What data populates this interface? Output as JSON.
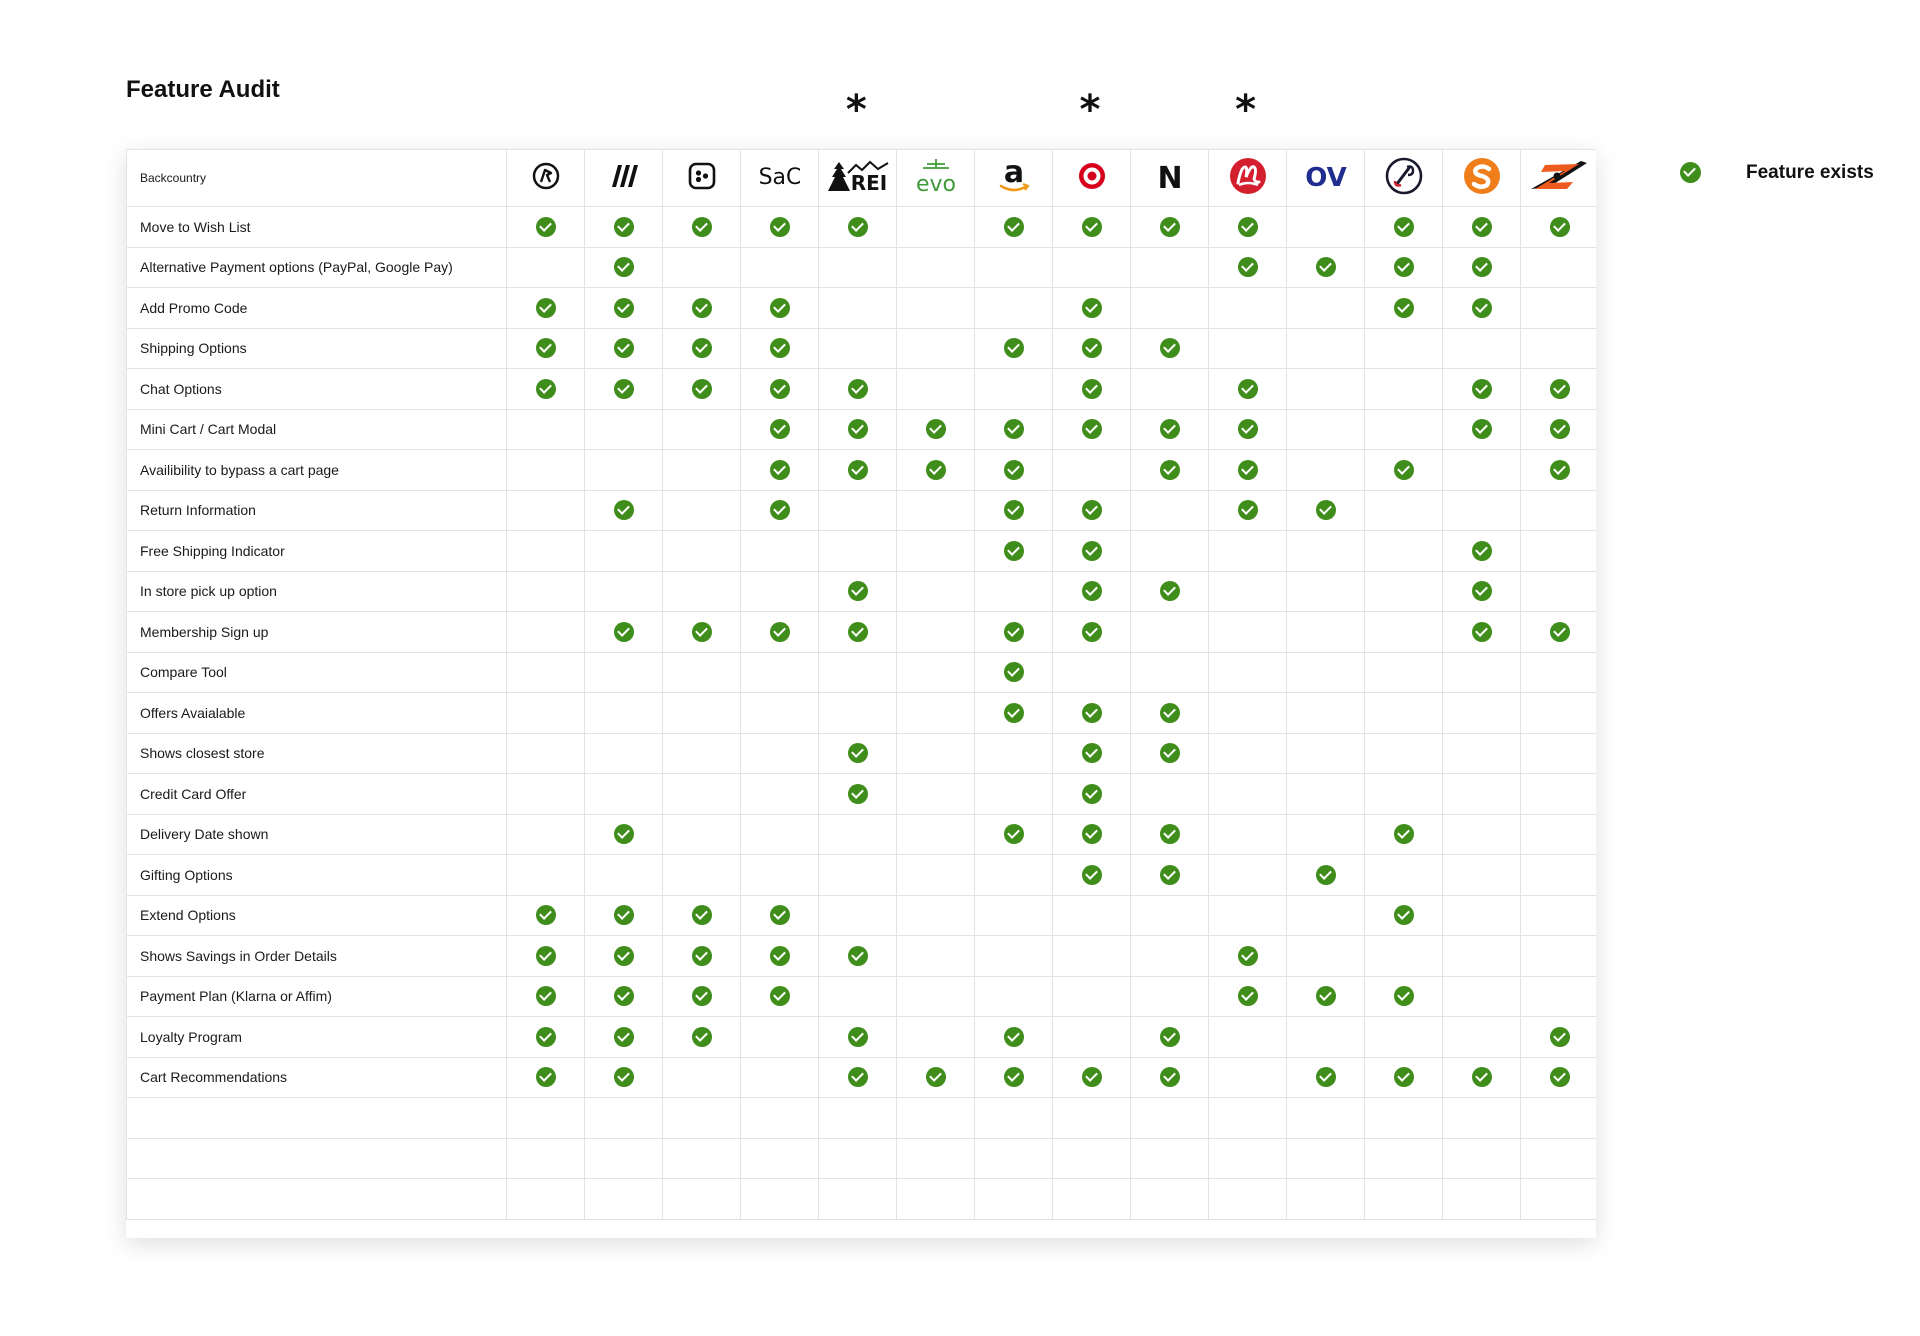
{
  "title": "Feature Audit",
  "header_label": "Backcountry",
  "legend": {
    "label": "Feature exists",
    "check_color": "#3f8d1b"
  },
  "star_marker": "*",
  "starred_columns": [
    "rei",
    "target",
    "lululemon"
  ],
  "columns": [
    {
      "id": "col-1",
      "icon": "athlete-circle-logo"
    },
    {
      "id": "col-2",
      "icon": "slanted-stripes-logo"
    },
    {
      "id": "col-3",
      "icon": "rounded-square-dots-logo"
    },
    {
      "id": "sac",
      "icon": "sac-logo",
      "text": "SaC"
    },
    {
      "id": "rei",
      "icon": "rei-logo",
      "text": "REI"
    },
    {
      "id": "evo",
      "icon": "evo-logo",
      "text": "evo"
    },
    {
      "id": "amazon",
      "icon": "amazon-logo",
      "text": "a"
    },
    {
      "id": "target",
      "icon": "target-logo"
    },
    {
      "id": "n",
      "icon": "n-logo",
      "text": "N"
    },
    {
      "id": "lululemon",
      "icon": "lululemon-logo"
    },
    {
      "id": "ov",
      "icon": "ov-logo",
      "text": "OV"
    },
    {
      "id": "col-12",
      "icon": "carabiner-circle-logo"
    },
    {
      "id": "col-13",
      "icon": "orange-s-circle-logo"
    },
    {
      "id": "col-14",
      "icon": "orange-z-logo"
    }
  ],
  "rows": [
    {
      "label": "Move to Wish List",
      "checks": [
        1,
        1,
        1,
        1,
        1,
        0,
        1,
        1,
        1,
        1,
        0,
        1,
        1,
        1
      ]
    },
    {
      "label": "Alternative Payment options (PayPal, Google Pay)",
      "checks": [
        0,
        1,
        0,
        0,
        0,
        0,
        0,
        0,
        0,
        1,
        1,
        1,
        1,
        0
      ]
    },
    {
      "label": "Add Promo Code",
      "checks": [
        1,
        1,
        1,
        1,
        0,
        0,
        0,
        1,
        0,
        0,
        0,
        1,
        1,
        0
      ]
    },
    {
      "label": "Shipping Options",
      "checks": [
        1,
        1,
        1,
        1,
        0,
        0,
        1,
        1,
        1,
        0,
        0,
        0,
        0,
        0
      ]
    },
    {
      "label": "Chat Options",
      "checks": [
        1,
        1,
        1,
        1,
        1,
        0,
        0,
        1,
        0,
        1,
        0,
        0,
        1,
        1
      ]
    },
    {
      "label": "Mini Cart / Cart Modal",
      "checks": [
        0,
        0,
        0,
        1,
        1,
        1,
        1,
        1,
        1,
        1,
        0,
        0,
        1,
        1
      ]
    },
    {
      "label": "Availibility to bypass a cart page",
      "checks": [
        0,
        0,
        0,
        1,
        1,
        1,
        1,
        0,
        1,
        1,
        0,
        1,
        0,
        1
      ]
    },
    {
      "label": "Return Information",
      "checks": [
        0,
        1,
        0,
        1,
        0,
        0,
        1,
        1,
        0,
        1,
        1,
        0,
        0,
        0
      ]
    },
    {
      "label": "Free Shipping Indicator",
      "checks": [
        0,
        0,
        0,
        0,
        0,
        0,
        1,
        1,
        0,
        0,
        0,
        0,
        1,
        0
      ]
    },
    {
      "label": "In store pick up option",
      "checks": [
        0,
        0,
        0,
        0,
        1,
        0,
        0,
        1,
        1,
        0,
        0,
        0,
        1,
        0
      ]
    },
    {
      "label": "Membership Sign up",
      "checks": [
        0,
        1,
        1,
        1,
        1,
        0,
        1,
        1,
        0,
        0,
        0,
        0,
        1,
        1
      ]
    },
    {
      "label": "Compare Tool",
      "checks": [
        0,
        0,
        0,
        0,
        0,
        0,
        1,
        0,
        0,
        0,
        0,
        0,
        0,
        0
      ]
    },
    {
      "label": "Offers Avaialable",
      "checks": [
        0,
        0,
        0,
        0,
        0,
        0,
        1,
        1,
        1,
        0,
        0,
        0,
        0,
        0
      ]
    },
    {
      "label": "Shows closest store",
      "checks": [
        0,
        0,
        0,
        0,
        1,
        0,
        0,
        1,
        1,
        0,
        0,
        0,
        0,
        0
      ]
    },
    {
      "label": "Credit Card Offer",
      "checks": [
        0,
        0,
        0,
        0,
        1,
        0,
        0,
        1,
        0,
        0,
        0,
        0,
        0,
        0
      ]
    },
    {
      "label": "Delivery Date shown",
      "checks": [
        0,
        1,
        0,
        0,
        0,
        0,
        1,
        1,
        1,
        0,
        0,
        1,
        0,
        0
      ]
    },
    {
      "label": "Gifting Options",
      "checks": [
        0,
        0,
        0,
        0,
        0,
        0,
        0,
        1,
        1,
        0,
        1,
        0,
        0,
        0
      ]
    },
    {
      "label": "Extend Options",
      "checks": [
        1,
        1,
        1,
        1,
        0,
        0,
        0,
        0,
        0,
        0,
        0,
        1,
        0,
        0
      ]
    },
    {
      "label": "Shows Savings in Order Details",
      "checks": [
        1,
        1,
        1,
        1,
        1,
        0,
        0,
        0,
        0,
        1,
        0,
        0,
        0,
        0
      ]
    },
    {
      "label": "Payment Plan (Klarna or Affim)",
      "checks": [
        1,
        1,
        1,
        1,
        0,
        0,
        0,
        0,
        0,
        1,
        1,
        1,
        0,
        0
      ]
    },
    {
      "label": "Loyalty Program",
      "checks": [
        1,
        1,
        1,
        0,
        1,
        0,
        1,
        0,
        1,
        0,
        0,
        0,
        0,
        1
      ]
    },
    {
      "label": "Cart Recommendations",
      "checks": [
        1,
        1,
        0,
        0,
        1,
        1,
        1,
        1,
        1,
        0,
        1,
        1,
        1,
        1
      ]
    },
    {
      "label": "",
      "checks": [
        0,
        0,
        0,
        0,
        0,
        0,
        0,
        0,
        0,
        0,
        0,
        0,
        0,
        0
      ]
    },
    {
      "label": "",
      "checks": [
        0,
        0,
        0,
        0,
        0,
        0,
        0,
        0,
        0,
        0,
        0,
        0,
        0,
        0
      ]
    },
    {
      "label": "",
      "checks": [
        0,
        0,
        0,
        0,
        0,
        0,
        0,
        0,
        0,
        0,
        0,
        0,
        0,
        0
      ]
    }
  ]
}
